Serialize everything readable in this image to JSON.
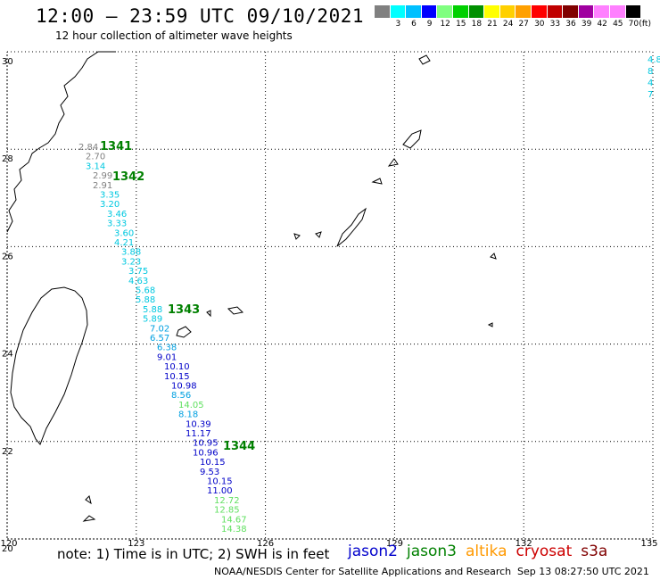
{
  "title": "12:00 – 23:59 UTC 09/10/2021",
  "subtitle": "12 hour collection of altimeter wave heights",
  "colorbar": {
    "unit": "(ft)",
    "bins": [
      {
        "label": "",
        "color": "#808080"
      },
      {
        "label": "3",
        "color": "#00ffff"
      },
      {
        "label": "6",
        "color": "#00c0ff"
      },
      {
        "label": "9",
        "color": "#0000ff"
      },
      {
        "label": "12",
        "color": "#80ff80"
      },
      {
        "label": "15",
        "color": "#00d000"
      },
      {
        "label": "18",
        "color": "#009000"
      },
      {
        "label": "21",
        "color": "#ffff00"
      },
      {
        "label": "24",
        "color": "#ffd000"
      },
      {
        "label": "27",
        "color": "#ffa000"
      },
      {
        "label": "30",
        "color": "#ff0000"
      },
      {
        "label": "33",
        "color": "#c00000"
      },
      {
        "label": "36",
        "color": "#800000"
      },
      {
        "label": "39",
        "color": "#a000a0"
      },
      {
        "label": "42",
        "color": "#ff80ff"
      },
      {
        "label": "45",
        "color": "#ff80ff"
      },
      {
        "label": "70",
        "color": "#000000"
      }
    ]
  },
  "axes": {
    "lon_ticks": [
      "120",
      "123",
      "126",
      "129",
      "132",
      "135"
    ],
    "lat_ticks": [
      "30",
      "28",
      "26",
      "24",
      "22",
      "20"
    ]
  },
  "passes": [
    {
      "id": "1341",
      "color": "#008000"
    },
    {
      "id": "1342",
      "color": "#008000"
    },
    {
      "id": "1343",
      "color": "#008000"
    },
    {
      "id": "1344",
      "color": "#008000"
    }
  ],
  "track": [
    {
      "v": "2.84",
      "c": "#808080"
    },
    {
      "v": "2.70",
      "c": "#808080"
    },
    {
      "v": "3.14",
      "c": "#00c8e0"
    },
    {
      "v": "2.99",
      "c": "#808080"
    },
    {
      "v": "2.91",
      "c": "#808080"
    },
    {
      "v": "3.35",
      "c": "#00c8e0"
    },
    {
      "v": "3.20",
      "c": "#00c8e0"
    },
    {
      "v": "3.46",
      "c": "#00c8e0"
    },
    {
      "v": "3.33",
      "c": "#00c8e0"
    },
    {
      "v": "3.60",
      "c": "#00c8e0"
    },
    {
      "v": "4.21",
      "c": "#00c8e0"
    },
    {
      "v": "3.88",
      "c": "#00c8e0"
    },
    {
      "v": "3.23",
      "c": "#00c8e0"
    },
    {
      "v": "3.75",
      "c": "#00c8e0"
    },
    {
      "v": "4.63",
      "c": "#00c8e0"
    },
    {
      "v": "5.68",
      "c": "#00c8e0"
    },
    {
      "v": "5.88",
      "c": "#00c8e0"
    },
    {
      "v": "5.88",
      "c": "#00c8e0"
    },
    {
      "v": "5.89",
      "c": "#00c8e0"
    },
    {
      "v": "7.02",
      "c": "#00a0e0"
    },
    {
      "v": "6.57",
      "c": "#00a0e0"
    },
    {
      "v": "6.38",
      "c": "#00a0e0"
    },
    {
      "v": "9.01",
      "c": "#0000c8"
    },
    {
      "v": "10.10",
      "c": "#0000c8"
    },
    {
      "v": "10.15",
      "c": "#0000c8"
    },
    {
      "v": "10.98",
      "c": "#0000c8"
    },
    {
      "v": "8.56",
      "c": "#00a0e0"
    },
    {
      "v": "14.05",
      "c": "#60e060"
    },
    {
      "v": "8.18",
      "c": "#00a0e0"
    },
    {
      "v": "10.39",
      "c": "#0000c8"
    },
    {
      "v": "11.17",
      "c": "#0000c8"
    },
    {
      "v": "10.95",
      "c": "#0000c8"
    },
    {
      "v": "10.96",
      "c": "#0000c8"
    },
    {
      "v": "10.15",
      "c": "#0000c8"
    },
    {
      "v": "9.53",
      "c": "#0000c8"
    },
    {
      "v": "10.15",
      "c": "#0000c8"
    },
    {
      "v": "11.00",
      "c": "#0000c8"
    },
    {
      "v": "12.72",
      "c": "#60e060"
    },
    {
      "v": "12.85",
      "c": "#60e060"
    },
    {
      "v": "14.67",
      "c": "#60e060"
    },
    {
      "v": "14.38",
      "c": "#60e060"
    }
  ],
  "edge_values": [
    "4.8",
    "8",
    "4",
    "7"
  ],
  "note": "note: 1) Time is in UTC; 2) SWH is in feet",
  "satellites": [
    {
      "name": "jason2",
      "color": "#0000cc"
    },
    {
      "name": "jason3",
      "color": "#008000"
    },
    {
      "name": "altika",
      "color": "#ff9900"
    },
    {
      "name": "cryosat",
      "color": "#cc0000"
    },
    {
      "name": "s3a",
      "color": "#800000"
    }
  ],
  "credit": "NOAA/NESDIS Center for Satellite Applications and Research",
  "credit_time": "Sep 13 08:27:50 UTC 2021"
}
